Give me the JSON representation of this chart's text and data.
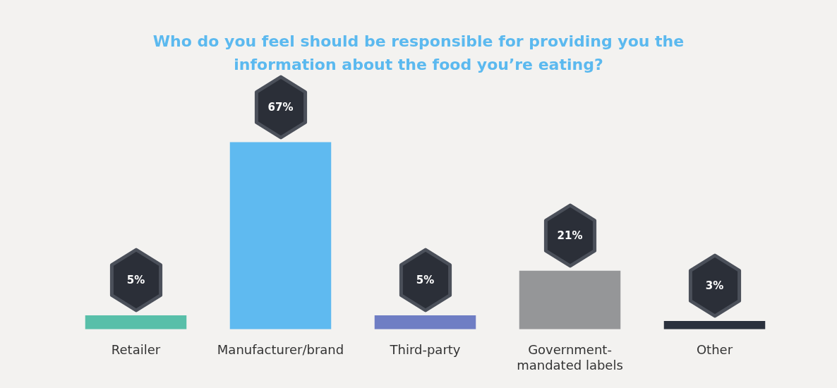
{
  "chart_data": {
    "type": "bar",
    "title": "Who do you feel should be responsible for providing you the information about the food you’re eating?",
    "categories": [
      "Retailer",
      "Manufacturer/brand",
      "Third-party",
      "Government-mandated labels",
      "Other"
    ],
    "values": [
      5,
      67,
      5,
      21,
      3
    ],
    "colors": [
      "#58bfa9",
      "#5fbaf0",
      "#6f7ec4",
      "#959698",
      "#2a313d"
    ],
    "value_labels": [
      "5%",
      "67%",
      "5%",
      "21%",
      "3%"
    ]
  }
}
